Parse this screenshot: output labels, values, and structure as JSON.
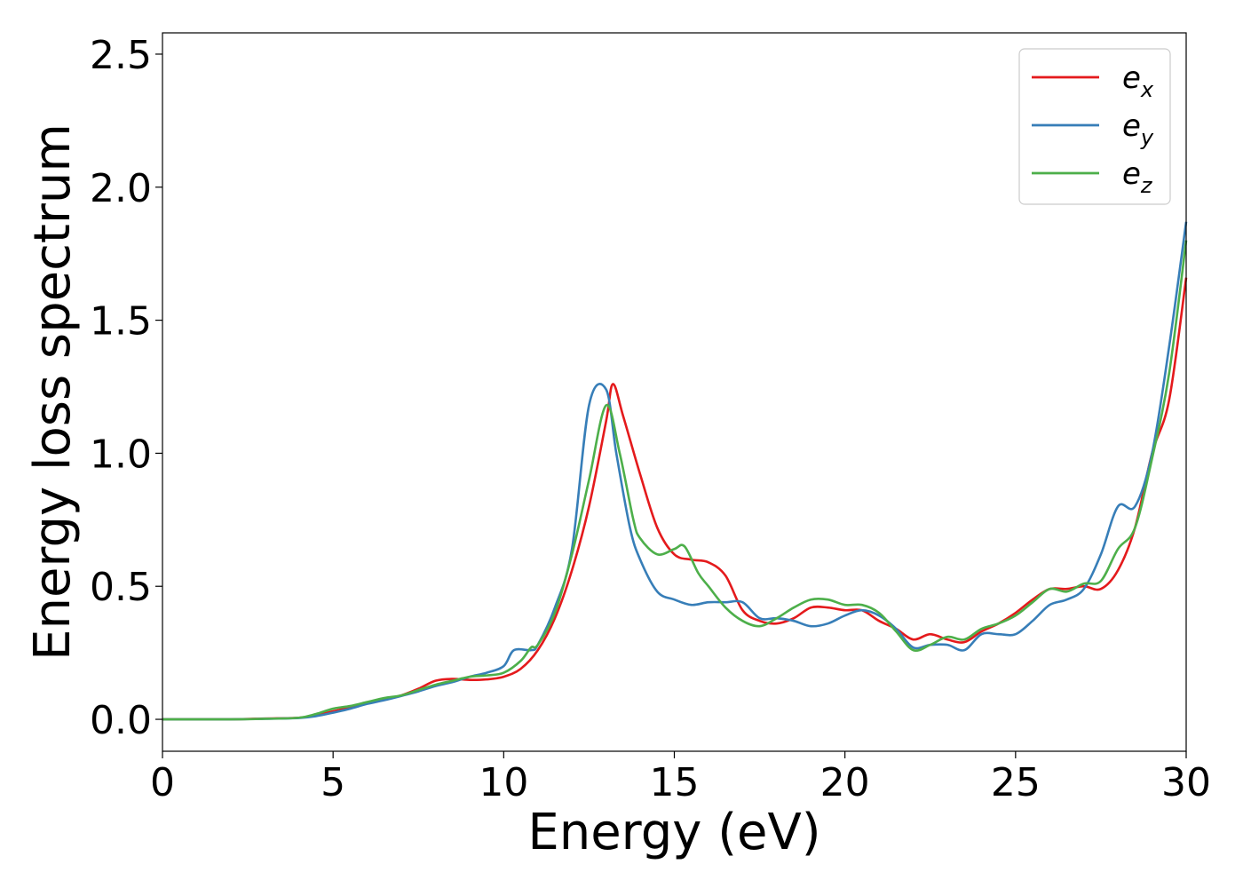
{
  "chart_data": {
    "type": "line",
    "xlabel": "Energy (eV)",
    "ylabel": "Energy loss spectrum",
    "xlim": [
      0,
      30
    ],
    "ylim": [
      -0.12,
      2.58
    ],
    "xticks": [
      0,
      5,
      10,
      15,
      20,
      25,
      30
    ],
    "yticks": [
      0.0,
      0.5,
      1.0,
      1.5,
      2.0,
      2.5
    ],
    "xtick_labels": [
      "0",
      "5",
      "10",
      "15",
      "20",
      "25",
      "30"
    ],
    "ytick_labels": [
      "0.0",
      "0.5",
      "1.0",
      "1.5",
      "2.0",
      "2.5"
    ],
    "grid": false,
    "legend_position": "top-right",
    "series": [
      {
        "name": "e_x",
        "label_base": "e",
        "label_sub": "x",
        "color": "#e41a1c",
        "points": [
          [
            0,
            0.0
          ],
          [
            2,
            0.0
          ],
          [
            3,
            0.003
          ],
          [
            4,
            0.006
          ],
          [
            4.5,
            0.015
          ],
          [
            5,
            0.03
          ],
          [
            5.5,
            0.045
          ],
          [
            6,
            0.06
          ],
          [
            6.5,
            0.075
          ],
          [
            7,
            0.09
          ],
          [
            7.5,
            0.115
          ],
          [
            8,
            0.145
          ],
          [
            8.5,
            0.152
          ],
          [
            9,
            0.148
          ],
          [
            9.5,
            0.15
          ],
          [
            10,
            0.16
          ],
          [
            10.5,
            0.19
          ],
          [
            11,
            0.26
          ],
          [
            11.5,
            0.38
          ],
          [
            12,
            0.56
          ],
          [
            12.5,
            0.8
          ],
          [
            13,
            1.12
          ],
          [
            13.2,
            1.26
          ],
          [
            13.5,
            1.14
          ],
          [
            14,
            0.92
          ],
          [
            14.5,
            0.72
          ],
          [
            15,
            0.62
          ],
          [
            15.5,
            0.6
          ],
          [
            16,
            0.59
          ],
          [
            16.5,
            0.54
          ],
          [
            17,
            0.41
          ],
          [
            17.5,
            0.37
          ],
          [
            18,
            0.36
          ],
          [
            18.5,
            0.38
          ],
          [
            19,
            0.42
          ],
          [
            19.5,
            0.42
          ],
          [
            20,
            0.41
          ],
          [
            20.5,
            0.41
          ],
          [
            21,
            0.37
          ],
          [
            21.5,
            0.34
          ],
          [
            22,
            0.3
          ],
          [
            22.5,
            0.32
          ],
          [
            23,
            0.3
          ],
          [
            23.5,
            0.29
          ],
          [
            24,
            0.33
          ],
          [
            24.5,
            0.36
          ],
          [
            25,
            0.4
          ],
          [
            25.5,
            0.45
          ],
          [
            26,
            0.49
          ],
          [
            26.5,
            0.49
          ],
          [
            27,
            0.5
          ],
          [
            27.5,
            0.49
          ],
          [
            28,
            0.56
          ],
          [
            28.5,
            0.72
          ],
          [
            29,
            1.0
          ],
          [
            29.5,
            1.2
          ],
          [
            30,
            1.66
          ]
        ]
      },
      {
        "name": "e_y",
        "label_base": "e",
        "label_sub": "y",
        "color": "#377eb8",
        "points": [
          [
            0,
            0.0
          ],
          [
            2,
            0.0
          ],
          [
            3,
            0.002
          ],
          [
            4,
            0.005
          ],
          [
            4.5,
            0.012
          ],
          [
            5,
            0.025
          ],
          [
            5.5,
            0.04
          ],
          [
            6,
            0.058
          ],
          [
            6.5,
            0.072
          ],
          [
            7,
            0.088
          ],
          [
            7.5,
            0.105
          ],
          [
            8,
            0.125
          ],
          [
            8.5,
            0.14
          ],
          [
            9,
            0.16
          ],
          [
            9.5,
            0.175
          ],
          [
            10,
            0.2
          ],
          [
            10.3,
            0.26
          ],
          [
            10.8,
            0.26
          ],
          [
            11,
            0.28
          ],
          [
            11.5,
            0.42
          ],
          [
            12,
            0.64
          ],
          [
            12.5,
            1.18
          ],
          [
            13,
            1.24
          ],
          [
            13.3,
            1.0
          ],
          [
            13.7,
            0.72
          ],
          [
            14,
            0.6
          ],
          [
            14.5,
            0.48
          ],
          [
            15,
            0.45
          ],
          [
            15.5,
            0.43
          ],
          [
            16,
            0.44
          ],
          [
            16.5,
            0.44
          ],
          [
            17,
            0.44
          ],
          [
            17.5,
            0.38
          ],
          [
            18,
            0.38
          ],
          [
            18.5,
            0.37
          ],
          [
            19,
            0.35
          ],
          [
            19.5,
            0.36
          ],
          [
            20,
            0.39
          ],
          [
            20.5,
            0.41
          ],
          [
            21,
            0.39
          ],
          [
            21.5,
            0.34
          ],
          [
            22,
            0.27
          ],
          [
            22.5,
            0.28
          ],
          [
            23,
            0.28
          ],
          [
            23.5,
            0.26
          ],
          [
            24,
            0.32
          ],
          [
            24.5,
            0.32
          ],
          [
            25,
            0.32
          ],
          [
            25.5,
            0.37
          ],
          [
            26,
            0.43
          ],
          [
            26.5,
            0.45
          ],
          [
            27,
            0.49
          ],
          [
            27.5,
            0.62
          ],
          [
            28,
            0.8
          ],
          [
            28.5,
            0.8
          ],
          [
            29,
            1.0
          ],
          [
            29.5,
            1.4
          ],
          [
            30,
            1.87
          ]
        ]
      },
      {
        "name": "e_z",
        "label_base": "e",
        "label_sub": "z",
        "color": "#4daf4a",
        "points": [
          [
            0,
            0.0
          ],
          [
            2,
            0.0
          ],
          [
            3,
            0.002
          ],
          [
            4,
            0.006
          ],
          [
            4.5,
            0.02
          ],
          [
            5,
            0.04
          ],
          [
            5.5,
            0.05
          ],
          [
            6,
            0.065
          ],
          [
            6.5,
            0.08
          ],
          [
            7,
            0.09
          ],
          [
            7.5,
            0.11
          ],
          [
            8,
            0.13
          ],
          [
            8.5,
            0.145
          ],
          [
            9,
            0.16
          ],
          [
            9.5,
            0.165
          ],
          [
            10,
            0.175
          ],
          [
            10.5,
            0.22
          ],
          [
            10.8,
            0.27
          ],
          [
            11,
            0.28
          ],
          [
            11.5,
            0.4
          ],
          [
            12,
            0.62
          ],
          [
            12.5,
            0.9
          ],
          [
            13,
            1.18
          ],
          [
            13.4,
            1.0
          ],
          [
            13.8,
            0.75
          ],
          [
            14,
            0.68
          ],
          [
            14.5,
            0.62
          ],
          [
            15,
            0.64
          ],
          [
            15.3,
            0.65
          ],
          [
            15.7,
            0.55
          ],
          [
            16,
            0.5
          ],
          [
            16.5,
            0.42
          ],
          [
            17,
            0.37
          ],
          [
            17.5,
            0.35
          ],
          [
            18,
            0.38
          ],
          [
            18.5,
            0.42
          ],
          [
            19,
            0.45
          ],
          [
            19.5,
            0.45
          ],
          [
            20,
            0.43
          ],
          [
            20.5,
            0.43
          ],
          [
            21,
            0.4
          ],
          [
            21.5,
            0.33
          ],
          [
            22,
            0.26
          ],
          [
            22.5,
            0.28
          ],
          [
            23,
            0.31
          ],
          [
            23.5,
            0.3
          ],
          [
            24,
            0.34
          ],
          [
            24.5,
            0.36
          ],
          [
            25,
            0.39
          ],
          [
            25.5,
            0.44
          ],
          [
            26,
            0.49
          ],
          [
            26.5,
            0.48
          ],
          [
            27,
            0.51
          ],
          [
            27.5,
            0.52
          ],
          [
            28,
            0.64
          ],
          [
            28.5,
            0.72
          ],
          [
            29,
            0.98
          ],
          [
            29.5,
            1.3
          ],
          [
            30,
            1.8
          ]
        ]
      }
    ]
  }
}
